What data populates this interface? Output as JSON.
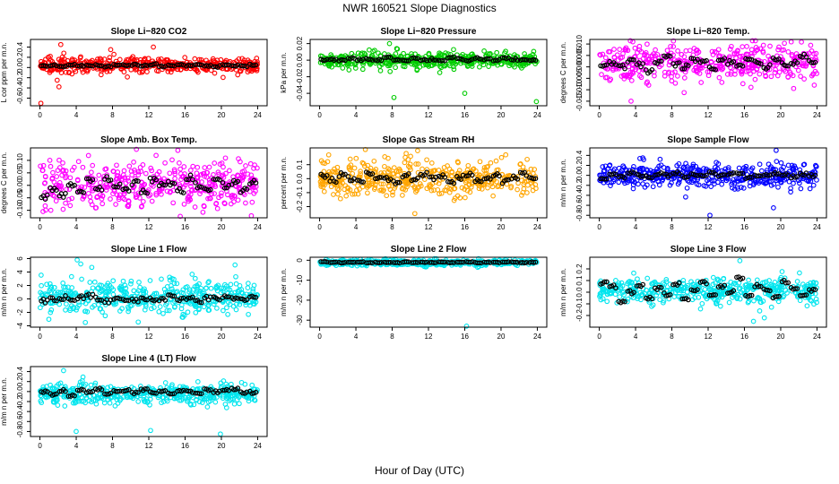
{
  "figure": {
    "title": "NWR  160521  Slope Diagnostics",
    "xlabel": "Hour of Day (UTC)"
  },
  "chart_data": [
    {
      "type": "scatter",
      "title": "Slope Li−820 CO2",
      "ylabel": "L cor ppm per m.n.",
      "color": "#ff0000",
      "xlim": [
        0,
        24
      ],
      "xticks": [
        0,
        4,
        8,
        12,
        16,
        20,
        24
      ],
      "ylim": [
        -0.75,
        0.55
      ],
      "yticks": [
        -0.6,
        -0.4,
        -0.2,
        0.0,
        0.2,
        0.4
      ],
      "ytick_labels": [
        "-0.6",
        "-0.4",
        "-0.2",
        "0.0",
        "0.2",
        "0.4"
      ],
      "center": 0.05,
      "spread": 0.07,
      "outliers": [
        [
          1.9,
          -0.25
        ],
        [
          2.1,
          -0.38
        ],
        [
          2.3,
          0.45
        ],
        [
          0.1,
          -0.7
        ],
        [
          12.5,
          0.4
        ],
        [
          7.8,
          0.35
        ]
      ],
      "avg": [
        0.03,
        0.05,
        0.02,
        0.06,
        0.04,
        0.03,
        0.05,
        0.02,
        0.06,
        0.04,
        0.05,
        0.03,
        0.06,
        0.02,
        0.04,
        0.05,
        0.03,
        0.06,
        0.04,
        0.02,
        0.05,
        0.04,
        0.03,
        0.05
      ]
    },
    {
      "type": "scatter",
      "title": "Slope Li−820 Pressure",
      "ylabel": "kPa per m.n.",
      "color": "#00cc00",
      "xlim": [
        0,
        24
      ],
      "xticks": [
        0,
        4,
        8,
        12,
        16,
        20,
        24
      ],
      "ylim": [
        -0.055,
        0.025
      ],
      "yticks": [
        -0.04,
        -0.02,
        0.0,
        0.02
      ],
      "ytick_labels": [
        "-0.04",
        "-0.02",
        "0.00",
        "0.02"
      ],
      "center": 0.0,
      "spread": 0.005,
      "outliers": [
        [
          7.7,
          0.02
        ],
        [
          8.2,
          -0.045
        ],
        [
          16.0,
          -0.04
        ],
        [
          23.9,
          -0.05
        ],
        [
          8.5,
          0.014
        ]
      ],
      "avg": [
        0.0,
        0.001,
        0.0,
        0.002,
        0.0,
        0.001,
        0.0,
        0.003,
        0.001,
        0.0,
        0.002,
        0.0,
        0.001,
        0.0,
        0.003,
        0.001,
        0.0,
        0.002,
        0.001,
        0.0,
        0.002,
        0.001,
        0.0,
        0.0
      ]
    },
    {
      "type": "scatter",
      "title": "Slope Li−820 Temp.",
      "ylabel": "degrees C per m.n.",
      "color": "#ff00ff",
      "xlim": [
        0,
        24
      ],
      "xticks": [
        0,
        4,
        8,
        12,
        16,
        20,
        24
      ],
      "ylim": [
        -0.017,
        0.012
      ],
      "yticks": [
        -0.015,
        -0.01,
        -0.005,
        0.0,
        0.005,
        0.01
      ],
      "ytick_labels": [
        "-0.015",
        "-0.010",
        "-0.005",
        "0.000",
        "0.005",
        "0.010"
      ],
      "center": 0.002,
      "spread": 0.004,
      "outliers": [
        [
          3.5,
          -0.015
        ],
        [
          3.7,
          0.011
        ],
        [
          23.7,
          -0.008
        ]
      ],
      "avg": [
        0.001,
        0.002,
        0.0,
        0.003,
        0.001,
        -0.002,
        0.002,
        0.004,
        0.001,
        0.0,
        0.003,
        0.002,
        -0.001,
        0.003,
        0.002,
        0.001,
        0.004,
        0.002,
        0.0,
        0.003,
        0.001,
        0.002,
        0.005,
        0.002
      ]
    },
    {
      "type": "scatter",
      "title": "Slope Amb. Box Temp.",
      "ylabel": "degrees C per m.n.",
      "color": "#ff00ff",
      "xlim": [
        0,
        24
      ],
      "xticks": [
        0,
        4,
        8,
        12,
        16,
        20,
        24
      ],
      "ylim": [
        -0.13,
        0.15
      ],
      "yticks": [
        -0.1,
        -0.05,
        0.0,
        0.05,
        0.1
      ],
      "ytick_labels": [
        "-0.10",
        "-0.05",
        "0.00",
        "0.05",
        "0.10"
      ],
      "center": 0.0,
      "spread": 0.045,
      "outliers": [
        [
          15.2,
          0.14
        ],
        [
          12.8,
          0.12
        ],
        [
          1.2,
          -0.1
        ]
      ],
      "avg": [
        -0.05,
        -0.02,
        -0.04,
        0.0,
        -0.03,
        0.02,
        -0.01,
        0.03,
        0.0,
        -0.02,
        0.01,
        -0.03,
        0.02,
        0.0,
        0.01,
        -0.02,
        0.03,
        0.0,
        -0.01,
        0.02,
        0.0,
        0.01,
        -0.02,
        0.01
      ]
    },
    {
      "type": "scatter",
      "title": "Slope Gas Stream RH",
      "ylabel": "percent per m.n.",
      "color": "#ffa500",
      "xlim": [
        0,
        24
      ],
      "xticks": [
        0,
        4,
        8,
        12,
        16,
        20,
        24
      ],
      "ylim": [
        -0.28,
        0.22
      ],
      "yticks": [
        -0.2,
        -0.1,
        0.0,
        0.1
      ],
      "ytick_labels": [
        "-0.2",
        "-0.1",
        "0.0",
        "0.1"
      ],
      "center": 0.0,
      "spread": 0.065,
      "outliers": [
        [
          10.5,
          -0.25
        ],
        [
          10.8,
          0.2
        ],
        [
          1.0,
          0.17
        ]
      ],
      "avg": [
        0.02,
        -0.01,
        0.03,
        0.0,
        -0.02,
        0.04,
        0.01,
        0.0,
        -0.03,
        0.02,
        -0.01,
        0.03,
        0.0,
        0.02,
        -0.02,
        0.01,
        0.03,
        -0.01,
        0.0,
        0.02,
        -0.02,
        0.01,
        0.03,
        0.0
      ]
    },
    {
      "type": "scatter",
      "title": "Slope Sample Flow",
      "ylabel": "m/m n per m.n.",
      "color": "#0000ff",
      "xlim": [
        0,
        24
      ],
      "xticks": [
        0,
        4,
        8,
        12,
        16,
        20,
        24
      ],
      "ylim": [
        -0.85,
        0.55
      ],
      "yticks": [
        -0.8,
        -0.6,
        -0.4,
        -0.2,
        0.0,
        0.2,
        0.4
      ],
      "ytick_labels": [
        "-0.8",
        "-0.6",
        "-0.4",
        "-0.2",
        "0.0",
        "0.2",
        "0.4"
      ],
      "center": 0.0,
      "spread": 0.12,
      "outliers": [
        [
          19.5,
          0.5
        ],
        [
          12.2,
          -0.8
        ],
        [
          19.2,
          -0.65
        ],
        [
          4.8,
          0.35
        ]
      ],
      "avg": [
        -0.05,
        0.02,
        -0.04,
        0.05,
        0.0,
        -0.02,
        0.03,
        0.0,
        0.04,
        -0.03,
        0.02,
        0.0,
        0.05,
        -0.01,
        0.03,
        0.02,
        -0.04,
        0.01,
        0.0,
        0.04,
        0.02,
        -0.02,
        0.03,
        0.0
      ]
    },
    {
      "type": "scatter",
      "title": "Slope Line 1 Flow",
      "ylabel": "m/m n per m.n.",
      "color": "#00e5ee",
      "xlim": [
        0,
        24
      ],
      "xticks": [
        0,
        4,
        8,
        12,
        16,
        20,
        24
      ],
      "ylim": [
        -4.2,
        6.2
      ],
      "yticks": [
        -4,
        -2,
        0,
        2,
        4,
        6
      ],
      "ytick_labels": [
        "-4",
        "-2",
        "0",
        "2",
        "4",
        "6"
      ],
      "center": 0.3,
      "spread": 1.2,
      "outliers": [
        [
          4.1,
          5.8
        ],
        [
          4.5,
          5.2
        ],
        [
          5.0,
          -3.5
        ],
        [
          7.2,
          -2.5
        ]
      ],
      "avg": [
        -0.3,
        0.0,
        0.2,
        -0.2,
        0.3,
        0.5,
        0.0,
        -0.4,
        0.2,
        0.0,
        -0.3,
        0.1,
        0.0,
        -0.2,
        0.4,
        0.0,
        0.2,
        -0.3,
        0.1,
        0.0,
        0.3,
        -0.1,
        0.0,
        0.2
      ]
    },
    {
      "type": "scatter",
      "title": "Slope Line 2 Flow",
      "ylabel": "m/m n per m.n.",
      "color": "#00e5ee",
      "xlim": [
        0,
        24
      ],
      "xticks": [
        0,
        4,
        8,
        12,
        16,
        20,
        24
      ],
      "ylim": [
        -33.5,
        1.5
      ],
      "yticks": [
        -30,
        -20,
        -10,
        0
      ],
      "ytick_labels": [
        "-30",
        "-20",
        "-10",
        "0"
      ],
      "center": -1.2,
      "spread": 0.7,
      "outliers": [
        [
          16.2,
          -33
        ],
        [
          4.5,
          0.5
        ]
      ],
      "avg": [
        -0.8,
        -1.0,
        -1.2,
        -1.0,
        -0.9,
        -1.3,
        -1.1,
        -1.0,
        -1.2,
        -0.9,
        -1.1,
        -1.0,
        -1.2,
        -0.8,
        -1.1,
        -1.0,
        -0.9,
        -1.2,
        -1.0,
        -1.1,
        -0.9,
        -1.0,
        -1.2,
        -1.0
      ]
    },
    {
      "type": "scatter",
      "title": "Slope Line 3 Flow",
      "ylabel": "m/m n per m.n.",
      "color": "#00e5ee",
      "xlim": [
        0,
        24
      ],
      "xticks": [
        0,
        4,
        8,
        12,
        16,
        20,
        24
      ],
      "ylim": [
        -0.3,
        0.3
      ],
      "yticks": [
        -0.2,
        -0.1,
        0.0,
        0.1,
        0.2
      ],
      "ytick_labels": [
        "-0.2",
        "-0.1",
        "0.0",
        "0.1",
        "0.2"
      ],
      "center": 0.01,
      "spread": 0.055,
      "outliers": [
        [
          15.5,
          0.27
        ],
        [
          17.0,
          -0.25
        ],
        [
          18.2,
          -0.22
        ]
      ],
      "avg": [
        0.08,
        0.05,
        -0.08,
        0.0,
        0.06,
        -0.05,
        0.03,
        -0.02,
        0.07,
        -0.06,
        0.02,
        0.08,
        -0.03,
        0.05,
        0.0,
        0.12,
        -0.04,
        0.06,
        0.02,
        -0.05,
        0.09,
        0.03,
        -0.02,
        0.02
      ]
    },
    {
      "type": "scatter",
      "title": "Slope Line 4 (LT) Flow",
      "ylabel": "m/m n per m.n.",
      "color": "#00e5ee",
      "xlim": [
        0,
        24
      ],
      "xticks": [
        0,
        4,
        8,
        12,
        16,
        20,
        24
      ],
      "ylim": [
        -0.9,
        0.5
      ],
      "yticks": [
        -0.8,
        -0.6,
        -0.4,
        -0.2,
        0.0,
        0.2,
        0.4
      ],
      "ytick_labels": [
        "-0.8",
        "-0.6",
        "-0.4",
        "-0.2",
        "0.0",
        "0.2",
        "0.4"
      ],
      "center": -0.05,
      "spread": 0.1,
      "outliers": [
        [
          2.6,
          0.42
        ],
        [
          4.0,
          -0.8
        ],
        [
          19.9,
          -0.85
        ],
        [
          12.2,
          -0.78
        ]
      ],
      "avg": [
        0.0,
        -0.05,
        0.02,
        -0.08,
        0.03,
        -0.02,
        0.05,
        -0.04,
        0.0,
        0.02,
        -0.03,
        0.04,
        -0.01,
        0.02,
        -0.05,
        0.03,
        0.0,
        -0.02,
        0.04,
        -0.01,
        0.02,
        0.05,
        -0.03,
        -0.02
      ]
    }
  ]
}
